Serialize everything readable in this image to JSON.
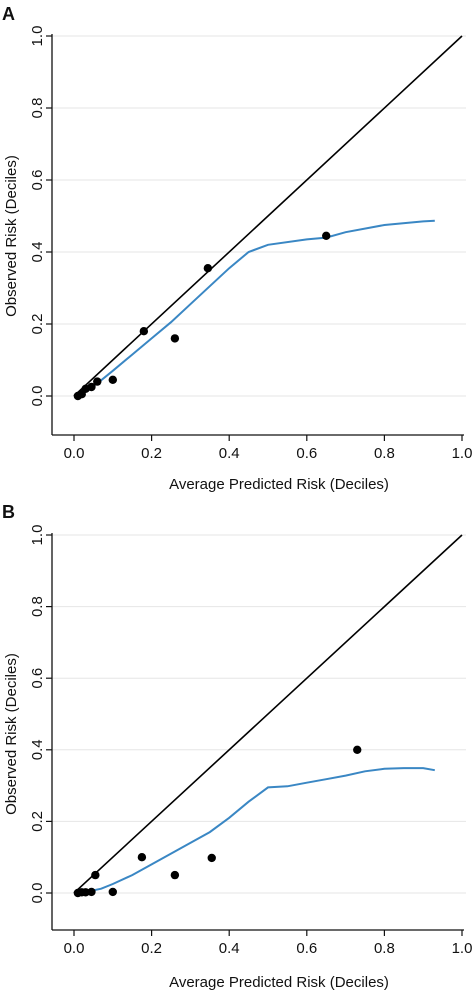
{
  "chart_data": [
    {
      "panel": "A",
      "type": "scatter",
      "xlabel": "Average Predicted Risk (Deciles)",
      "ylabel": "Observed Risk (Deciles)",
      "xlim": [
        0,
        1.0
      ],
      "ylim": [
        0,
        1.0
      ],
      "xticks": [
        "0.0",
        "0.2",
        "0.4",
        "0.6",
        "0.8",
        "1.0"
      ],
      "yticks": [
        "0.0",
        "0.2",
        "0.4",
        "0.6",
        "0.8",
        "1.0"
      ],
      "grid": "horizontal",
      "reference_line": {
        "x": [
          0,
          1.0
        ],
        "y": [
          0,
          1.0
        ],
        "color": "#000000"
      },
      "series": [
        {
          "kind": "points",
          "color": "#000000",
          "x": [
            0.01,
            0.02,
            0.03,
            0.045,
            0.06,
            0.1,
            0.18,
            0.26,
            0.345,
            0.65
          ],
          "y": [
            0.0,
            0.005,
            0.02,
            0.025,
            0.04,
            0.045,
            0.18,
            0.16,
            0.355,
            0.445
          ]
        },
        {
          "kind": "smooth",
          "color": "#3a87c4",
          "x": [
            0.01,
            0.03,
            0.06,
            0.1,
            0.15,
            0.2,
            0.25,
            0.3,
            0.35,
            0.4,
            0.45,
            0.5,
            0.6,
            0.65,
            0.7,
            0.8,
            0.9,
            0.93
          ],
          "y": [
            0.0,
            0.015,
            0.035,
            0.07,
            0.115,
            0.16,
            0.205,
            0.255,
            0.305,
            0.355,
            0.4,
            0.42,
            0.435,
            0.44,
            0.455,
            0.475,
            0.485,
            0.487
          ]
        }
      ]
    },
    {
      "panel": "B",
      "type": "scatter",
      "xlabel": "Average Predicted Risk (Deciles)",
      "ylabel": "Observed Risk (Deciles)",
      "xlim": [
        0,
        1.0
      ],
      "ylim": [
        0,
        1.0
      ],
      "xticks": [
        "0.0",
        "0.2",
        "0.4",
        "0.6",
        "0.8",
        "1.0"
      ],
      "yticks": [
        "0.0",
        "0.2",
        "0.4",
        "0.6",
        "0.8",
        "1.0"
      ],
      "grid": "horizontal",
      "reference_line": {
        "x": [
          0,
          1.0
        ],
        "y": [
          0,
          1.0
        ],
        "color": "#000000"
      },
      "series": [
        {
          "kind": "points",
          "color": "#000000",
          "x": [
            0.01,
            0.02,
            0.03,
            0.045,
            0.055,
            0.1,
            0.175,
            0.26,
            0.355,
            0.73
          ],
          "y": [
            0.0,
            0.002,
            0.002,
            0.003,
            0.05,
            0.003,
            0.1,
            0.05,
            0.098,
            0.4
          ]
        },
        {
          "kind": "smooth",
          "color": "#3a87c4",
          "x": [
            0.01,
            0.04,
            0.07,
            0.1,
            0.15,
            0.2,
            0.25,
            0.3,
            0.35,
            0.4,
            0.45,
            0.5,
            0.55,
            0.6,
            0.65,
            0.7,
            0.75,
            0.8,
            0.85,
            0.9,
            0.93
          ],
          "y": [
            0.0,
            0.005,
            0.012,
            0.025,
            0.05,
            0.08,
            0.11,
            0.14,
            0.17,
            0.21,
            0.255,
            0.295,
            0.298,
            0.308,
            0.318,
            0.328,
            0.34,
            0.347,
            0.349,
            0.349,
            0.343
          ]
        }
      ]
    }
  ]
}
